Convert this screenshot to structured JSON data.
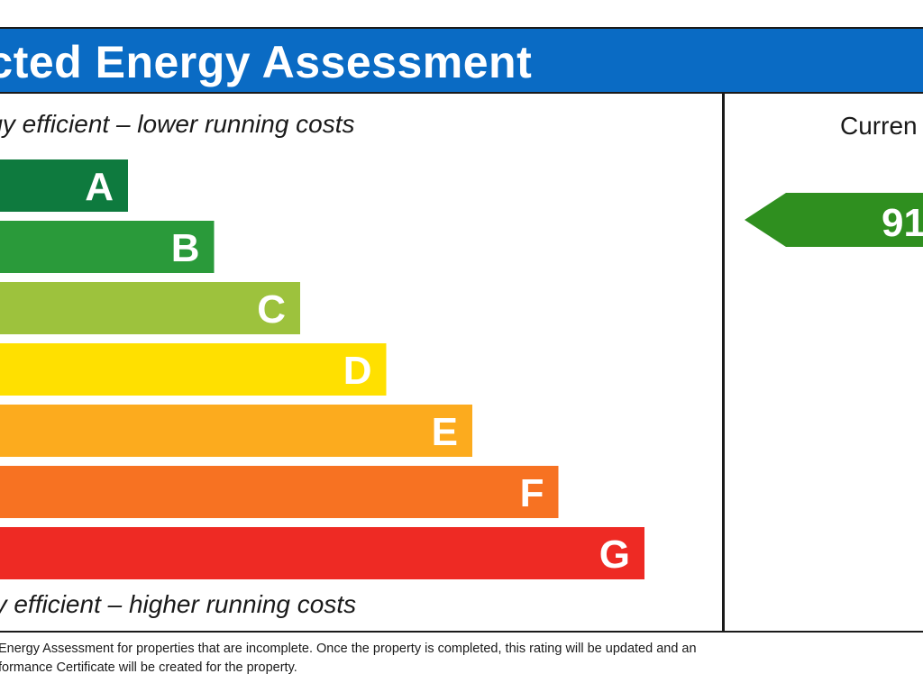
{
  "header": {
    "title": "icted Energy Assessment"
  },
  "captions": {
    "top": "rgy efficient – lower running costs",
    "bottom": "gy efficient – higher running costs"
  },
  "current": {
    "label": "Curren",
    "value_text": "91",
    "arrow_color": "#2f8f1f"
  },
  "footnote": {
    "line1": "Energy Assessment for properties that are incomplete. Once the property is completed, this rating will be updated and an",
    "line2": "formance Certificate will be created for the property."
  },
  "chart_data": {
    "type": "bar",
    "orientation": "horizontal",
    "categories": [
      "A",
      "B",
      "C",
      "D",
      "E",
      "F",
      "G"
    ],
    "colors": [
      "#0e7a3e",
      "#2a9a3a",
      "#9dc23d",
      "#ffe000",
      "#fcab1e",
      "#f77222",
      "#ee2a24"
    ],
    "order": "A shortest at top, G longest at bottom",
    "current_rating": 91
  }
}
